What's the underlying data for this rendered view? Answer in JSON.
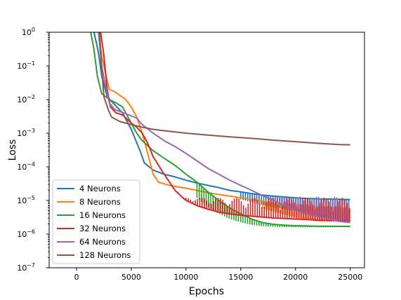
{
  "chart_data": {
    "type": "line",
    "title": "",
    "xlabel": "Epochs",
    "ylabel": "Loss",
    "yscale": "log",
    "xlim": [
      -2500,
      26300
    ],
    "ylim": [
      1e-07,
      1
    ],
    "xticks": [
      0,
      5000,
      10000,
      15000,
      20000,
      25000
    ],
    "xtick_labels": [
      "0",
      "5000",
      "10000",
      "15000",
      "20000",
      "25000"
    ],
    "yticks": [
      1e-07,
      1e-06,
      1e-05,
      0.0001,
      0.001,
      0.01,
      0.1,
      1
    ],
    "ytick_labels": [
      {
        "base": "10",
        "exp": "−7"
      },
      {
        "base": "10",
        "exp": "−6"
      },
      {
        "base": "10",
        "exp": "−5"
      },
      {
        "base": "10",
        "exp": "−4"
      },
      {
        "base": "10",
        "exp": "−3"
      },
      {
        "base": "10",
        "exp": "−2"
      },
      {
        "base": "10",
        "exp": "−1"
      },
      {
        "base": "10",
        "exp": "0"
      }
    ],
    "grid": false,
    "legend_position": "lower-left",
    "series": [
      {
        "name": "4 Neurons",
        "color": "#1f77b4",
        "points": [
          [
            1600,
            1.0
          ],
          [
            2000,
            0.25
          ],
          [
            2300,
            0.05
          ],
          [
            2800,
            0.012
          ],
          [
            3500,
            0.007
          ],
          [
            4200,
            0.004
          ],
          [
            5000,
            0.0013
          ],
          [
            5800,
            0.0003
          ],
          [
            6200,
            0.00013
          ],
          [
            7000,
            8e-05
          ],
          [
            8000,
            6e-05
          ],
          [
            9000,
            5e-05
          ],
          [
            10000,
            4e-05
          ],
          [
            11000,
            3.3e-05
          ],
          [
            12000,
            2.8e-05
          ],
          [
            13000,
            2.4e-05
          ],
          [
            14000,
            2e-05
          ],
          [
            15000,
            1.8e-05
          ],
          [
            16000,
            1.6e-05
          ],
          [
            17000,
            1.45e-05
          ],
          [
            18000,
            1.35e-05
          ],
          [
            19000,
            1.27e-05
          ],
          [
            20000,
            1.2e-05
          ],
          [
            21000,
            1.15e-05
          ],
          [
            22000,
            1.12e-05
          ],
          [
            23000,
            1.1e-05
          ],
          [
            24000,
            1.08e-05
          ],
          [
            25000,
            1.07e-05
          ]
        ],
        "oscillation": {
          "start": 15000,
          "end": 25000,
          "low": 4.2e-06
        }
      },
      {
        "name": "8 Neurons",
        "color": "#ff7f0e",
        "points": [
          [
            2000,
            1.0
          ],
          [
            2300,
            0.2
          ],
          [
            2700,
            0.05
          ],
          [
            3000,
            0.02
          ],
          [
            3500,
            0.017
          ],
          [
            4000,
            0.013
          ],
          [
            4500,
            0.01
          ],
          [
            5000,
            0.006
          ],
          [
            5500,
            0.003
          ],
          [
            6000,
            0.001
          ],
          [
            6500,
            0.00025
          ],
          [
            7000,
            6e-05
          ],
          [
            7500,
            3.5e-05
          ],
          [
            8500,
            2.8e-05
          ],
          [
            10000,
            2.3e-05
          ],
          [
            11000,
            2e-05
          ],
          [
            12000,
            1.7e-05
          ],
          [
            13000,
            1.5e-05
          ],
          [
            14000,
            1.35e-05
          ],
          [
            15000,
            1.2e-05
          ],
          [
            16000,
            1.05e-05
          ],
          [
            17000,
            9.5e-06
          ],
          [
            18000,
            8.5e-06
          ],
          [
            19000,
            8e-06
          ],
          [
            20000,
            7.5e-06
          ],
          [
            21000,
            7e-06
          ],
          [
            22000,
            6.6e-06
          ],
          [
            23000,
            6.3e-06
          ],
          [
            24000,
            6e-06
          ],
          [
            25000,
            5.8e-06
          ]
        ],
        "oscillation": {
          "start": 17000,
          "end": 25000,
          "low": 2.3e-06
        }
      },
      {
        "name": "16 Neurons",
        "color": "#2ca02c",
        "points": [
          [
            1300,
            1.0
          ],
          [
            1600,
            0.3
          ],
          [
            1900,
            0.05
          ],
          [
            2300,
            0.015
          ],
          [
            3000,
            0.01
          ],
          [
            3600,
            0.008
          ],
          [
            4200,
            0.006
          ],
          [
            5000,
            0.002
          ],
          [
            5500,
            0.001
          ],
          [
            6000,
            0.0006
          ],
          [
            7000,
            0.0003
          ],
          [
            8000,
            0.00018
          ],
          [
            9000,
            0.00011
          ],
          [
            10000,
            6e-05
          ],
          [
            11000,
            3.5e-05
          ],
          [
            12000,
            1.8e-05
          ],
          [
            13000,
            1e-05
          ],
          [
            14000,
            6e-06
          ],
          [
            15000,
            4e-06
          ],
          [
            16000,
            2.8e-06
          ],
          [
            17000,
            2.2e-06
          ],
          [
            18000,
            1.95e-06
          ],
          [
            19000,
            1.85e-06
          ],
          [
            20000,
            1.78e-06
          ],
          [
            22000,
            1.72e-06
          ],
          [
            25000,
            1.7e-06
          ]
        ],
        "oscillation": {
          "start": 11000,
          "end": 25000,
          "low": 1.6e-06
        }
      },
      {
        "name": "32 Neurons",
        "color": "#d62728",
        "points": [
          [
            2200,
            1.0
          ],
          [
            2500,
            0.2
          ],
          [
            2800,
            0.02
          ],
          [
            3100,
            0.006
          ],
          [
            3600,
            0.004
          ],
          [
            4200,
            0.0035
          ],
          [
            5000,
            0.002
          ],
          [
            5500,
            0.0015
          ],
          [
            6000,
            0.001
          ],
          [
            6500,
            0.0005
          ],
          [
            7000,
            0.0002
          ],
          [
            7500,
            0.00011
          ],
          [
            8000,
            6e-05
          ],
          [
            8500,
            3.5e-05
          ],
          [
            9000,
            2e-05
          ],
          [
            9500,
            1.4e-05
          ],
          [
            10000,
            1e-05
          ],
          [
            11000,
            7e-06
          ],
          [
            12000,
            5.5e-06
          ],
          [
            13000,
            4.5e-06
          ],
          [
            14000,
            4e-06
          ],
          [
            15000,
            3.6e-06
          ],
          [
            16000,
            3.4e-06
          ],
          [
            17000,
            3.2e-06
          ],
          [
            18000,
            3e-06
          ],
          [
            19000,
            2.9e-06
          ],
          [
            20000,
            2.8e-06
          ],
          [
            21000,
            2.7e-06
          ],
          [
            22000,
            2.6e-06
          ],
          [
            23000,
            2.55e-06
          ],
          [
            24000,
            2.5e-06
          ],
          [
            25000,
            2.45e-06
          ]
        ],
        "oscillation": {
          "start": 10000,
          "end": 25000,
          "high": 1.2e-05
        }
      },
      {
        "name": "64 Neurons",
        "color": "#9467bd",
        "points": [
          [
            2000,
            1.0
          ],
          [
            2300,
            0.1
          ],
          [
            2700,
            0.02
          ],
          [
            3000,
            0.008
          ],
          [
            3500,
            0.005
          ],
          [
            4500,
            0.0038
          ],
          [
            5500,
            0.0028
          ],
          [
            6000,
            0.0018
          ],
          [
            7000,
            0.001
          ],
          [
            8000,
            0.0006
          ],
          [
            9000,
            0.0004
          ],
          [
            10000,
            0.00025
          ],
          [
            11000,
            0.00015
          ],
          [
            12000,
            9e-05
          ],
          [
            13000,
            6e-05
          ],
          [
            14000,
            4e-05
          ],
          [
            15000,
            2.8e-05
          ],
          [
            16000,
            2e-05
          ],
          [
            17000,
            1.4e-05
          ],
          [
            18000,
            1e-05
          ],
          [
            19000,
            7e-06
          ],
          [
            20000,
            5e-06
          ],
          [
            21000,
            4e-06
          ],
          [
            22000,
            3.3e-06
          ],
          [
            23000,
            2.8e-06
          ],
          [
            24000,
            2.4e-06
          ],
          [
            25000,
            2.2e-06
          ]
        ],
        "oscillation": {
          "start": 9500,
          "end": 25000,
          "high": 1.3e-05
        }
      },
      {
        "name": "128 Neurons",
        "color": "#8c564b",
        "points": [
          [
            2100,
            1.0
          ],
          [
            2300,
            0.08
          ],
          [
            2500,
            0.012
          ],
          [
            2900,
            0.005
          ],
          [
            3200,
            0.003
          ],
          [
            4000,
            0.0022
          ],
          [
            5000,
            0.0018
          ],
          [
            6000,
            0.0015
          ],
          [
            7000,
            0.0013
          ],
          [
            8000,
            0.00118
          ],
          [
            10000,
            0.001
          ],
          [
            12000,
            0.00088
          ],
          [
            14000,
            0.00078
          ],
          [
            16000,
            0.0007
          ],
          [
            18000,
            0.00062
          ],
          [
            20000,
            0.00056
          ],
          [
            22000,
            0.0005
          ],
          [
            24000,
            0.00046
          ],
          [
            25000,
            0.00045
          ]
        ],
        "oscillation": null
      }
    ]
  }
}
